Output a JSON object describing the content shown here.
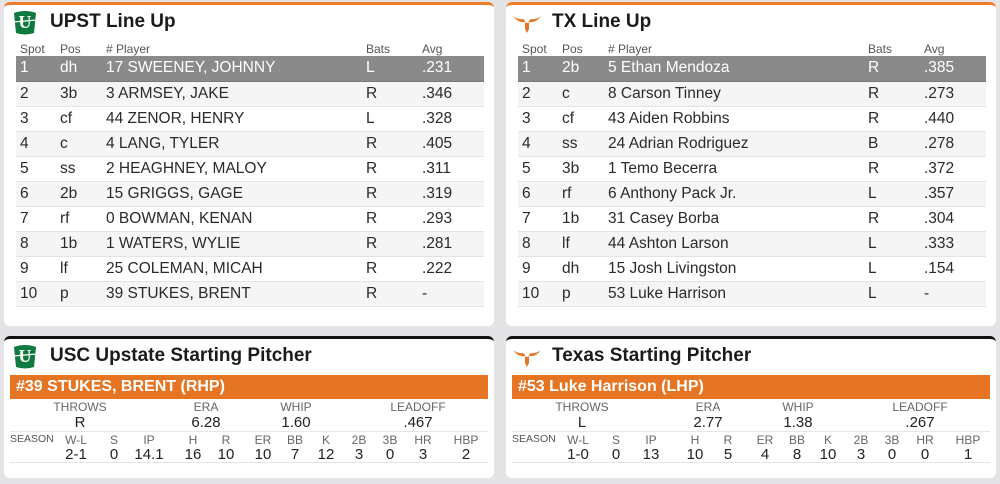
{
  "accent_color": "#e67523",
  "lineup_headers": {
    "spot": "Spot",
    "pos": "Pos",
    "player": "# Player",
    "bats": "Bats",
    "avg": "Avg"
  },
  "upst_lineup": {
    "title": "UPST Line Up",
    "logo_icon": "usc-upstate-logo-icon",
    "rows": [
      {
        "spot": "1",
        "pos": "dh",
        "player": "17 SWEENEY, JOHNNY",
        "bats": "L",
        "avg": ".231"
      },
      {
        "spot": "2",
        "pos": "3b",
        "player": "3 ARMSEY, JAKE",
        "bats": "R",
        "avg": ".346"
      },
      {
        "spot": "3",
        "pos": "cf",
        "player": "44 ZENOR, HENRY",
        "bats": "L",
        "avg": ".328"
      },
      {
        "spot": "4",
        "pos": "c",
        "player": "4 LANG, TYLER",
        "bats": "R",
        "avg": ".405"
      },
      {
        "spot": "5",
        "pos": "ss",
        "player": "2 HEAGHNEY, MALOY",
        "bats": "R",
        "avg": ".311"
      },
      {
        "spot": "6",
        "pos": "2b",
        "player": "15 GRIGGS, GAGE",
        "bats": "R",
        "avg": ".319"
      },
      {
        "spot": "7",
        "pos": "rf",
        "player": "0 BOWMAN, KENAN",
        "bats": "R",
        "avg": ".293"
      },
      {
        "spot": "8",
        "pos": "1b",
        "player": "1 WATERS, WYLIE",
        "bats": "R",
        "avg": ".281"
      },
      {
        "spot": "9",
        "pos": "lf",
        "player": "25 COLEMAN, MICAH",
        "bats": "R",
        "avg": ".222"
      },
      {
        "spot": "10",
        "pos": "p",
        "player": "39 STUKES, BRENT",
        "bats": "R",
        "avg": "-"
      }
    ]
  },
  "tx_lineup": {
    "title": "TX Line Up",
    "logo_icon": "longhorn-logo-icon",
    "rows": [
      {
        "spot": "1",
        "pos": "2b",
        "player": "5 Ethan Mendoza",
        "bats": "R",
        "avg": ".385"
      },
      {
        "spot": "2",
        "pos": "c",
        "player": "8 Carson Tinney",
        "bats": "R",
        "avg": ".273"
      },
      {
        "spot": "3",
        "pos": "cf",
        "player": "43 Aiden Robbins",
        "bats": "R",
        "avg": ".440"
      },
      {
        "spot": "4",
        "pos": "ss",
        "player": "24 Adrian Rodriguez",
        "bats": "B",
        "avg": ".278"
      },
      {
        "spot": "5",
        "pos": "3b",
        "player": "1 Temo Becerra",
        "bats": "R",
        "avg": ".372"
      },
      {
        "spot": "6",
        "pos": "rf",
        "player": "6 Anthony Pack Jr.",
        "bats": "L",
        "avg": ".357"
      },
      {
        "spot": "7",
        "pos": "1b",
        "player": "31 Casey Borba",
        "bats": "R",
        "avg": ".304"
      },
      {
        "spot": "8",
        "pos": "lf",
        "player": "44 Ashton Larson",
        "bats": "L",
        "avg": ".333"
      },
      {
        "spot": "9",
        "pos": "dh",
        "player": "15 Josh Livingston",
        "bats": "L",
        "avg": ".154"
      },
      {
        "spot": "10",
        "pos": "p",
        "player": "53 Luke Harrison",
        "bats": "L",
        "avg": "-"
      }
    ]
  },
  "pitcher_labels": {
    "throws": "THROWS",
    "era": "ERA",
    "whip": "WHIP",
    "leadoff": "LEADOFF",
    "season": "SEASON",
    "wl": "W-L",
    "s": "S",
    "ip": "IP",
    "h": "H",
    "r": "R",
    "er": "ER",
    "bb": "BB",
    "k": "K",
    "2b": "2B",
    "3b": "3B",
    "hr": "HR",
    "hbp": "HBP"
  },
  "upst_pitcher": {
    "title": "USC Upstate Starting Pitcher",
    "name": "#39 STUKES, BRENT (RHP)",
    "throws": "R",
    "era": "6.28",
    "whip": "1.60",
    "leadoff": ".467",
    "wl": "2-1",
    "s": "0",
    "ip": "14.1",
    "h": "16",
    "r": "10",
    "er": "10",
    "bb": "7",
    "k": "12",
    "2b": "3",
    "3b": "0",
    "hr": "3",
    "hbp": "2"
  },
  "tx_pitcher": {
    "title": "Texas Starting Pitcher",
    "name": "#53 Luke Harrison (LHP)",
    "throws": "L",
    "era": "2.77",
    "whip": "1.38",
    "leadoff": ".267",
    "wl": "1-0",
    "s": "0",
    "ip": "13",
    "h": "10",
    "r": "5",
    "er": "4",
    "bb": "8",
    "k": "10",
    "2b": "3",
    "3b": "0",
    "hr": "0",
    "hbp": "1"
  }
}
